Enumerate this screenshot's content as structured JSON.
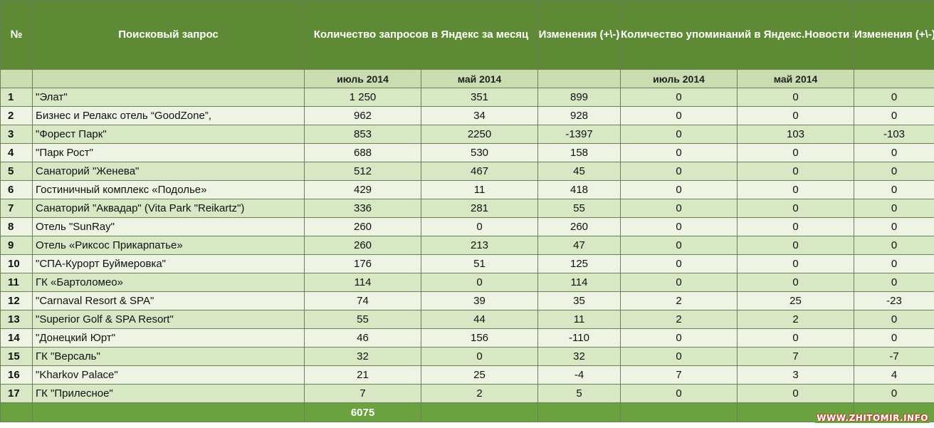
{
  "header": {
    "num": "№",
    "query": "Поисковый запрос",
    "requests": "Количество запросов в Яндекс за месяц",
    "changes1": "Изменения (+\\-)",
    "mentions": "Количество упоминаний в Яндекс.Новости за месяц",
    "changes2": "Изменения (+\\-)",
    "july": "июль 2014",
    "may": "май 2014",
    "july2": "июль 2014",
    "may2": "май 2014"
  },
  "rows": [
    {
      "n": "1",
      "name": "\"Элат\"",
      "req_jul": "1 250",
      "req_may": "351",
      "req_chg": "899",
      "men_jul": "0",
      "men_may": "0",
      "men_chg": "0"
    },
    {
      "n": "2",
      "name": "Бизнес и Релакс отель “GoodZone”,",
      "req_jul": "962",
      "req_may": "34",
      "req_chg": "928",
      "men_jul": "0",
      "men_may": "0",
      "men_chg": "0"
    },
    {
      "n": "3",
      "name": "\"Форест Парк\"",
      "req_jul": "853",
      "req_may": "2250",
      "req_chg": "-1397",
      "men_jul": "0",
      "men_may": "103",
      "men_chg": "-103"
    },
    {
      "n": "4",
      "name": "\"Парк Рост\"",
      "req_jul": "688",
      "req_may": "530",
      "req_chg": "158",
      "men_jul": "0",
      "men_may": "0",
      "men_chg": "0"
    },
    {
      "n": "5",
      "name": "Санаторий \"Женева\"",
      "req_jul": "512",
      "req_may": "467",
      "req_chg": "45",
      "men_jul": "0",
      "men_may": "0",
      "men_chg": "0"
    },
    {
      "n": "6",
      "name": "Гостиничный комплекс «Подолье»",
      "req_jul": "429",
      "req_may": "11",
      "req_chg": "418",
      "men_jul": "0",
      "men_may": "0",
      "men_chg": "0"
    },
    {
      "n": "7",
      "name": "Санаторий \"Аквадар\" (Vita Park \"Reikartz\")",
      "req_jul": "336",
      "req_may": "281",
      "req_chg": "55",
      "men_jul": "0",
      "men_may": "0",
      "men_chg": "0"
    },
    {
      "n": "8",
      "name": "Отель \"SunRay\"",
      "req_jul": "260",
      "req_may": "0",
      "req_chg": "260",
      "men_jul": "0",
      "men_may": "0",
      "men_chg": "0"
    },
    {
      "n": "9",
      "name": "Отель «Риксос Прикарпатье»",
      "req_jul": "260",
      "req_may": "213",
      "req_chg": "47",
      "men_jul": "0",
      "men_may": "0",
      "men_chg": "0"
    },
    {
      "n": "10",
      "name": "\"СПА-Курорт Буймеровка\"",
      "req_jul": "176",
      "req_may": "51",
      "req_chg": "125",
      "men_jul": "0",
      "men_may": "0",
      "men_chg": "0"
    },
    {
      "n": "11",
      "name": "ГК «Бартоломео»",
      "req_jul": "114",
      "req_may": "0",
      "req_chg": "114",
      "men_jul": "0",
      "men_may": "0",
      "men_chg": "0"
    },
    {
      "n": "12",
      "name": "\"Carnaval Resort & SPA\"",
      "req_jul": "74",
      "req_may": "39",
      "req_chg": "35",
      "men_jul": "2",
      "men_may": "25",
      "men_chg": "-23"
    },
    {
      "n": "13",
      "name": "\"Superior Golf & SPA Resort\"",
      "req_jul": "55",
      "req_may": "44",
      "req_chg": "11",
      "men_jul": "2",
      "men_may": "2",
      "men_chg": "0"
    },
    {
      "n": "14",
      "name": "\"Донецкий Юрт\"",
      "req_jul": "46",
      "req_may": "156",
      "req_chg": "-110",
      "men_jul": "0",
      "men_may": "0",
      "men_chg": "0"
    },
    {
      "n": "15",
      "name": "ГК \"Версаль\"",
      "req_jul": "32",
      "req_may": "0",
      "req_chg": "32",
      "men_jul": "0",
      "men_may": "7",
      "men_chg": "-7"
    },
    {
      "n": "16",
      "name": "\"Kharkov Palace\"",
      "req_jul": "21",
      "req_may": "25",
      "req_chg": "-4",
      "men_jul": "7",
      "men_may": "3",
      "men_chg": "4"
    },
    {
      "n": "17",
      "name": "ГК \"Прилесное\"",
      "req_jul": "7",
      "req_may": "2",
      "req_chg": "5",
      "men_jul": "0",
      "men_may": "0",
      "men_chg": "0"
    }
  ],
  "footer": {
    "total": "6075"
  },
  "watermark": "WWW.ZHITOMIR.INFO",
  "colors": {
    "header": "#5f8a35",
    "subheader": "#c9ddb1",
    "row_odd": "#d8e8c5",
    "row_even": "#edf4e3",
    "footer": "#6ba13f"
  }
}
